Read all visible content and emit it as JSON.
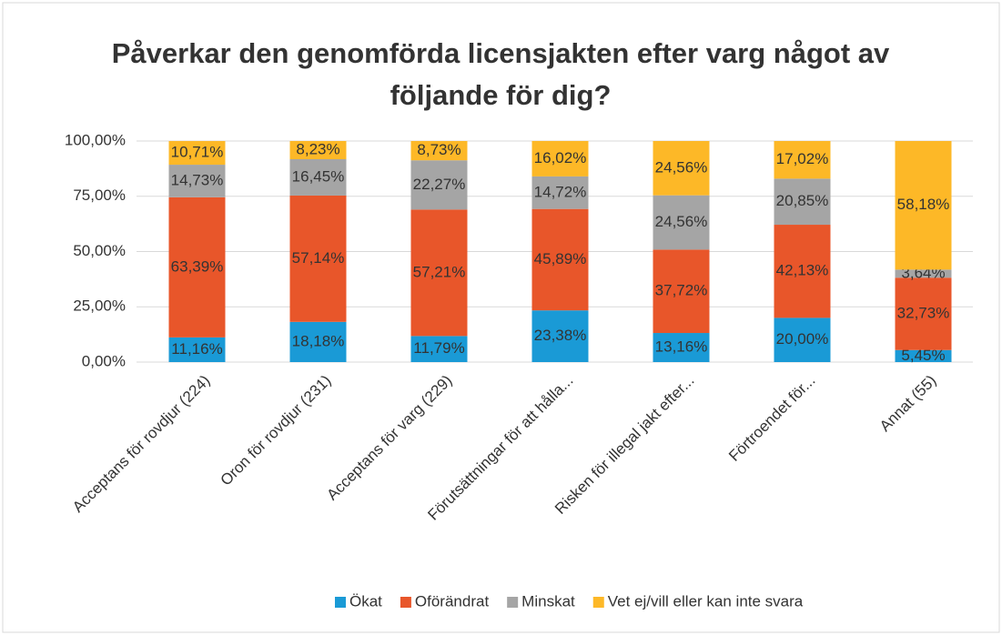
{
  "chart_data": {
    "type": "stacked_bar",
    "title": "Påverkar den genomförda licensjakten efter varg något av följande för dig?",
    "categories": [
      "Acceptans för rovdjur (224)",
      "Oron för rovdjur (231)",
      "Acceptans för varg (229)",
      "Förutsättningar för att hålla...",
      "Risken för illegal jakt efter...",
      "Förtroendet för...",
      "Annat (55)"
    ],
    "series": [
      {
        "name": "Ökat",
        "color": "#1a9ad6",
        "values": [
          11.16,
          18.18,
          11.79,
          23.38,
          13.16,
          20.0,
          5.45
        ],
        "value_labels": [
          "11,16%",
          "18,18%",
          "11,79%",
          "23,38%",
          "13,16%",
          "20,00%",
          "5,45%"
        ]
      },
      {
        "name": "Oförändrat",
        "color": "#e8562a",
        "values": [
          63.39,
          57.14,
          57.21,
          45.89,
          37.72,
          42.13,
          32.73
        ],
        "value_labels": [
          "63,39%",
          "57,14%",
          "57,21%",
          "45,89%",
          "37,72%",
          "42,13%",
          "32,73%"
        ]
      },
      {
        "name": "Minskat",
        "color": "#a5a5a5",
        "values": [
          14.73,
          16.45,
          22.27,
          14.72,
          24.56,
          20.85,
          3.64
        ],
        "value_labels": [
          "14,73%",
          "16,45%",
          "22,27%",
          "14,72%",
          "24,56%",
          "20,85%",
          "3,64%"
        ]
      },
      {
        "name": "Vet ej/vill eller kan inte svara",
        "color": "#fdb827",
        "values": [
          10.71,
          8.23,
          8.73,
          16.02,
          24.56,
          17.02,
          58.18
        ],
        "value_labels": [
          "10,71%",
          "8,23%",
          "8,73%",
          "16,02%",
          "24,56%",
          "17,02%",
          "58,18%"
        ]
      }
    ],
    "ylim": [
      0,
      100
    ],
    "yticks": [
      {
        "value": 0,
        "label": "0,00%"
      },
      {
        "value": 25,
        "label": "25,00%"
      },
      {
        "value": 50,
        "label": "50,00%"
      },
      {
        "value": 75,
        "label": "75,00%"
      },
      {
        "value": 100,
        "label": "100,00%"
      }
    ],
    "grid": true,
    "legend": "bottom"
  }
}
